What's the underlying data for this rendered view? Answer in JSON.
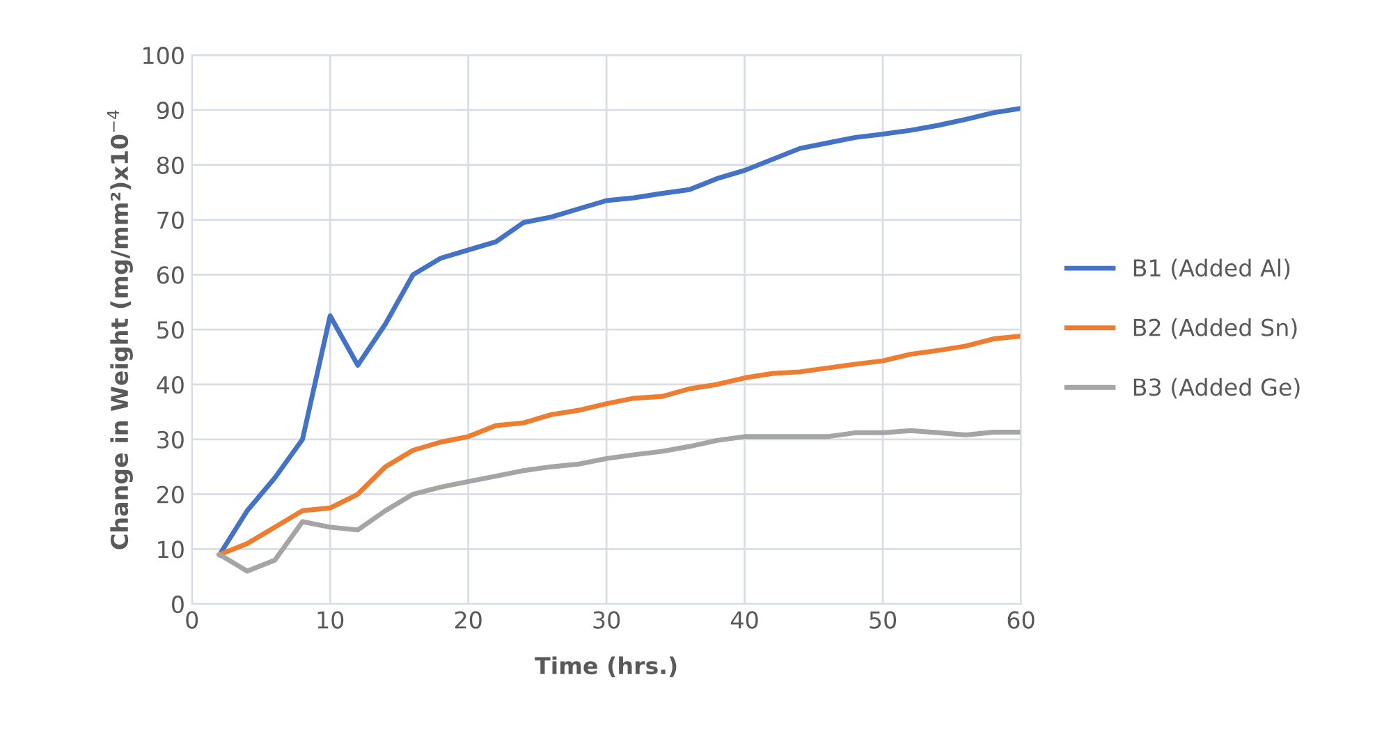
{
  "chart_data": {
    "type": "line",
    "xlabel": "Time (hrs.)",
    "ylabel": "Change in Weight (mg/mm²)x10$^{−4}$",
    "x": [
      2,
      4,
      6,
      8,
      10,
      12,
      14,
      16,
      18,
      20,
      22,
      24,
      26,
      28,
      30,
      32,
      34,
      36,
      38,
      40,
      42,
      44,
      46,
      48,
      50,
      52,
      54,
      56,
      58,
      60
    ],
    "series": [
      {
        "name": "B1 (Added Al)",
        "color": "#4472c4",
        "values": [
          9,
          17,
          23,
          30,
          52.5,
          43.5,
          51,
          60,
          63,
          64.5,
          66,
          69.5,
          70.5,
          72,
          73.5,
          74,
          74.8,
          75.5,
          77.5,
          79,
          81,
          83,
          84,
          85,
          85.6,
          86.3,
          87.2,
          88.3,
          89.5,
          90.3
        ]
      },
      {
        "name": "B2 (Added Sn)",
        "color": "#ed7d31",
        "values": [
          9,
          11,
          14,
          17,
          17.5,
          20,
          25,
          28,
          29.5,
          30.5,
          32.5,
          33,
          34.5,
          35.3,
          36.5,
          37.5,
          37.8,
          39.2,
          40,
          41.2,
          42,
          42.3,
          43,
          43.7,
          44.3,
          45.5,
          46.2,
          47,
          48.3,
          48.8
        ]
      },
      {
        "name": "B3 (Added Ge)",
        "color": "#a5a5a5",
        "values": [
          9,
          6,
          8,
          15,
          14,
          13.5,
          17,
          20,
          21.3,
          22.3,
          23.3,
          24.3,
          25,
          25.5,
          26.5,
          27.2,
          27.8,
          28.7,
          29.8,
          30.5,
          30.5,
          30.5,
          30.5,
          31.2,
          31.2,
          31.6,
          31.2,
          30.8,
          31.3,
          31.3
        ]
      }
    ],
    "xlim": [
      0,
      60
    ],
    "xticks": [
      0,
      10,
      20,
      30,
      40,
      50,
      60
    ],
    "ylim": [
      0,
      100
    ],
    "yticks": [
      0,
      10,
      20,
      30,
      40,
      50,
      60,
      70,
      80,
      90,
      100
    ],
    "grid": true,
    "legend": "right",
    "marker": "none",
    "line_style": "solid"
  }
}
